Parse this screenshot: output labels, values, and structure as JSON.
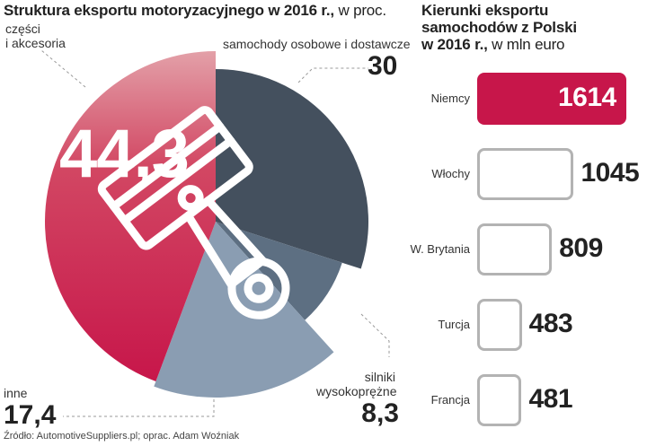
{
  "left_title": {
    "bold": "Struktura eksportu motoryzacyjnego w 2016 r.,",
    "rest": " w proc."
  },
  "right_title": {
    "line1": "Kierunki eksportu",
    "line2": "samochodów z Polski",
    "line3_bold": "w 2016 r.,",
    "line3_rest": " w mln euro"
  },
  "source": "Źródło: AutomotiveSuppliers.pl; oprac. Adam Woźniak",
  "colors": {
    "accent": "#c7164a",
    "accent_light": "#dd7d8a",
    "dark": "#44505e",
    "mid": "#5d6f82",
    "light": "#8a9db2",
    "border": "#b3b3b3"
  },
  "chart_data": [
    {
      "type": "pie",
      "slices": [
        {
          "label": "samochody osobowe i dostawcze",
          "value": 30,
          "value_text": "30"
        },
        {
          "label": "silniki wysokoprężne",
          "label_lines": [
            "silniki",
            "wysokoprężne"
          ],
          "value": 8.3,
          "value_text": "8,3"
        },
        {
          "label": "inne",
          "value": 17.4,
          "value_text": "17,4"
        },
        {
          "label": "części i akcesoria",
          "label_lines": [
            "części",
            "i akcesoria"
          ],
          "value": 44.3,
          "value_text": "44,3"
        }
      ],
      "center_icon": "piston-icon"
    },
    {
      "type": "bar",
      "orientation": "horizontal",
      "categories": [
        "Niemcy",
        "Włochy",
        "W. Brytania",
        "Turcja",
        "Francja"
      ],
      "values": [
        1614,
        1045,
        809,
        483,
        481
      ],
      "value_texts": [
        "1614",
        "1045",
        "809",
        "483",
        "481"
      ],
      "highlight": "Niemcy"
    }
  ]
}
